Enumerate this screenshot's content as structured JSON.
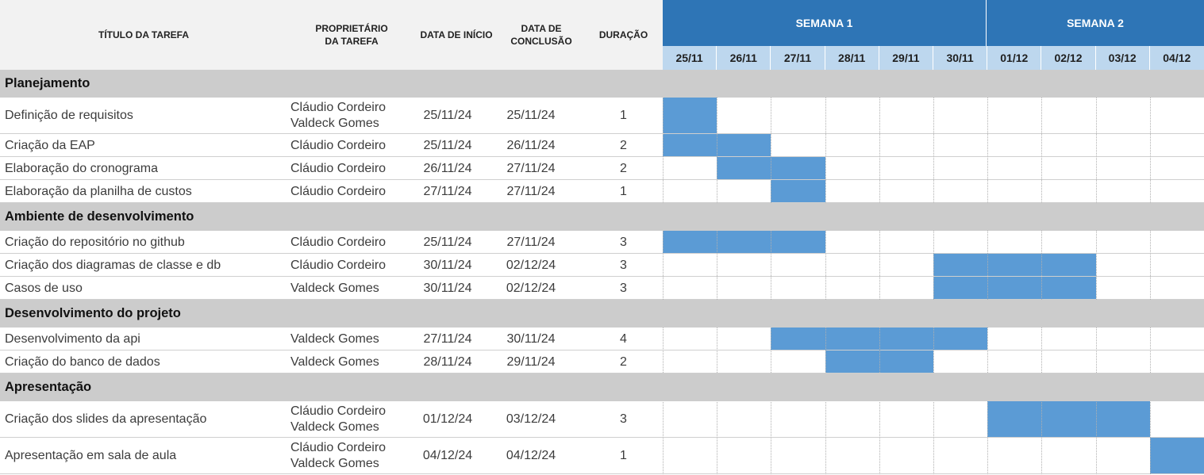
{
  "headers": {
    "title": "TÍTULO DA TAREFA",
    "owner_l1": "PROPRIETÁRIO",
    "owner_l2": "DA TAREFA",
    "start": "DATA DE INÍCIO",
    "end_l1": "DATA DE",
    "end_l2": "CONCLUSÃO",
    "duration": "DURAÇÃO"
  },
  "weeks": [
    "SEMANA 1",
    "SEMANA 2"
  ],
  "days": [
    "25/11",
    "26/11",
    "27/11",
    "28/11",
    "29/11",
    "30/11",
    "01/12",
    "02/12",
    "03/12",
    "04/12"
  ],
  "colors": {
    "week_header": "#2e75b6",
    "day_header": "#bdd7ee",
    "bar": "#5b9bd5",
    "section": "#cccccc"
  },
  "chart_data": {
    "type": "gantt",
    "rows": [
      {
        "kind": "section",
        "label": "Planejamento"
      },
      {
        "kind": "task",
        "title": "Definição de requisitos",
        "owners": [
          "Cláudio Cordeiro",
          "Valdeck Gomes"
        ],
        "start": "25/11/24",
        "end": "25/11/24",
        "duration": "1",
        "start_day": 0,
        "span": 1
      },
      {
        "kind": "task",
        "title": "Criação da EAP",
        "owners": [
          "Cláudio Cordeiro"
        ],
        "start": "25/11/24",
        "end": "26/11/24",
        "duration": "2",
        "start_day": 0,
        "span": 2
      },
      {
        "kind": "task",
        "title": "Elaboração do cronograma",
        "owners": [
          "Cláudio Cordeiro"
        ],
        "start": "26/11/24",
        "end": "27/11/24",
        "duration": "2",
        "start_day": 1,
        "span": 2
      },
      {
        "kind": "task",
        "title": "Elaboração da planilha de custos",
        "owners": [
          "Cláudio Cordeiro"
        ],
        "start": "27/11/24",
        "end": "27/11/24",
        "duration": "1",
        "start_day": 2,
        "span": 1
      },
      {
        "kind": "section",
        "label": "Ambiente de desenvolvimento"
      },
      {
        "kind": "task",
        "title": "Criação do repositório no github",
        "owners": [
          "Cláudio Cordeiro"
        ],
        "start": "25/11/24",
        "end": "27/11/24",
        "duration": "3",
        "start_day": 0,
        "span": 3
      },
      {
        "kind": "task",
        "title": "Criação dos diagramas de classe e db",
        "owners": [
          "Cláudio Cordeiro"
        ],
        "start": "30/11/24",
        "end": "02/12/24",
        "duration": "3",
        "start_day": 5,
        "span": 3
      },
      {
        "kind": "task",
        "title": "Casos de uso",
        "owners": [
          "Valdeck Gomes"
        ],
        "start": "30/11/24",
        "end": "02/12/24",
        "duration": "3",
        "start_day": 5,
        "span": 3
      },
      {
        "kind": "section",
        "label": "Desenvolvimento do projeto"
      },
      {
        "kind": "task",
        "title": "Desenvolvimento da api",
        "owners": [
          "Valdeck Gomes"
        ],
        "start": "27/11/24",
        "end": "30/11/24",
        "duration": "4",
        "start_day": 2,
        "span": 4
      },
      {
        "kind": "task",
        "title": "Criação do banco de dados",
        "owners": [
          "Valdeck Gomes"
        ],
        "start": "28/11/24",
        "end": "29/11/24",
        "duration": "2",
        "start_day": 3,
        "span": 2
      },
      {
        "kind": "section",
        "label": "Apresentação"
      },
      {
        "kind": "task",
        "title": "Criação dos slides da apresentação",
        "owners": [
          "Cláudio Cordeiro",
          "Valdeck Gomes"
        ],
        "start": "01/12/24",
        "end": "03/12/24",
        "duration": "3",
        "start_day": 6,
        "span": 3
      },
      {
        "kind": "task",
        "title": "Apresentação em sala de aula",
        "owners": [
          "Cláudio Cordeiro",
          "Valdeck Gomes"
        ],
        "start": "04/12/24",
        "end": "04/12/24",
        "duration": "1",
        "start_day": 9,
        "span": 1
      }
    ]
  }
}
